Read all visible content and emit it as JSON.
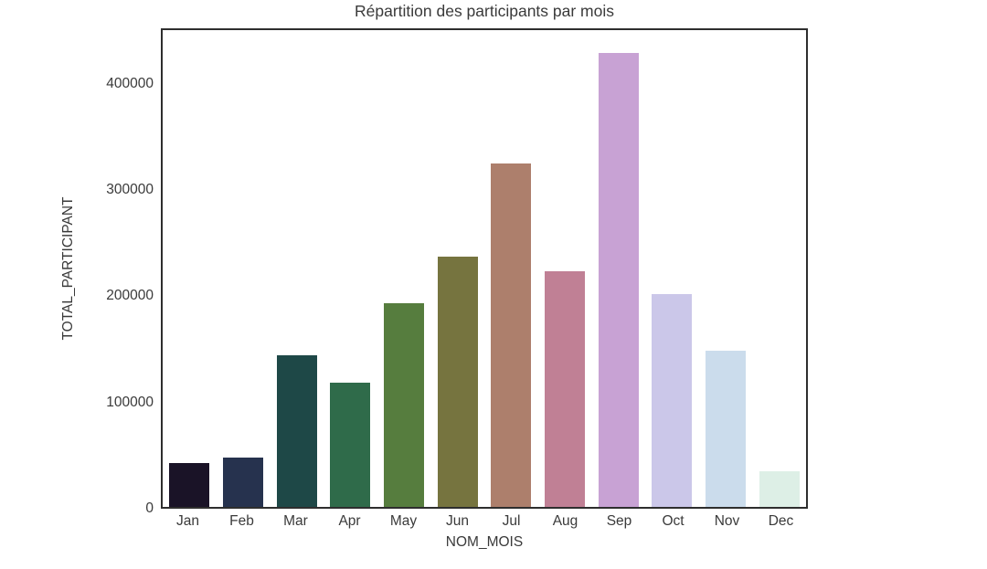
{
  "chart_data": {
    "type": "bar",
    "title": "Répartition des participants par mois",
    "xlabel": "NOM_MOIS",
    "ylabel": "TOTAL_PARTICIPANT",
    "categories": [
      "Jan",
      "Feb",
      "Mar",
      "Apr",
      "May",
      "Jun",
      "Jul",
      "Aug",
      "Sep",
      "Oct",
      "Nov",
      "Dec"
    ],
    "values": [
      42000,
      47000,
      144000,
      118000,
      193000,
      237000,
      326000,
      223000,
      430000,
      202000,
      148000,
      34000
    ],
    "bar_colors": [
      "#1a1327",
      "#26324e",
      "#1e4847",
      "#2f6b4a",
      "#567d3e",
      "#76743f",
      "#ad7f6c",
      "#c08095",
      "#c8a2d4",
      "#cbc7e9",
      "#cbdcec",
      "#ddefe6"
    ],
    "yticks": [
      0,
      100000,
      200000,
      300000,
      400000
    ],
    "ylim": [
      0,
      452000
    ],
    "grid": false,
    "legend_position": "none",
    "text_color": "#3a3a3a",
    "border_color": "#2e2e2e",
    "background_color": "#ffffff"
  }
}
